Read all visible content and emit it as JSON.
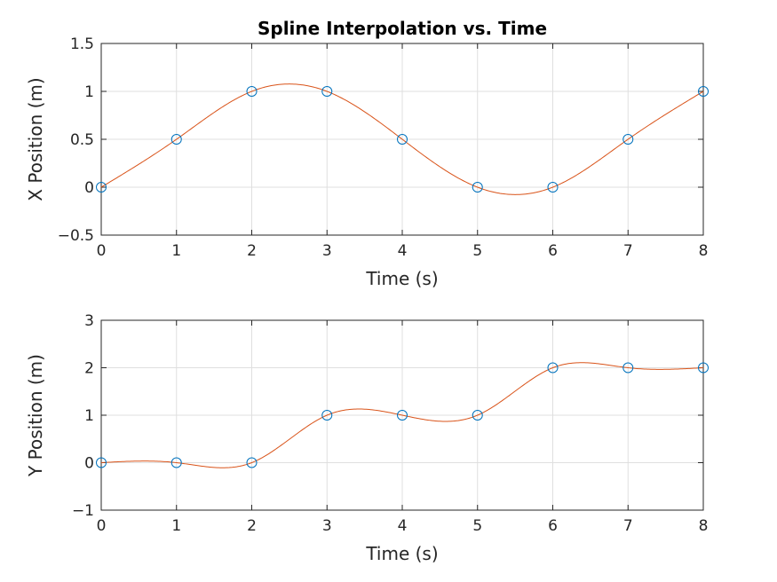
{
  "chart_data": [
    {
      "type": "line",
      "title": "Spline Interpolation vs. Time",
      "xlabel": "Time (s)",
      "ylabel": "X Position (m)",
      "xlim": [
        0,
        8
      ],
      "ylim": [
        -0.5,
        1.5
      ],
      "xticks": [
        0,
        1,
        2,
        3,
        4,
        5,
        6,
        7,
        8
      ],
      "xtick_labels": [
        "0",
        "1",
        "2",
        "3",
        "4",
        "5",
        "6",
        "7",
        "8"
      ],
      "yticks": [
        -0.5,
        0,
        0.5,
        1,
        1.5
      ],
      "ytick_labels": [
        "−0.5",
        "0",
        "0.5",
        "1",
        "1.5"
      ],
      "grid": true,
      "series": [
        {
          "style": "markers",
          "marker": "circle",
          "color": "#0072BD",
          "x": [
            0,
            1,
            2,
            3,
            4,
            5,
            6,
            7,
            8
          ],
          "y": [
            0,
            0.5,
            1,
            1,
            0.5,
            0,
            0,
            0.5,
            1
          ]
        },
        {
          "style": "line",
          "interpolation": "cubic spline",
          "color": "#D95319",
          "x": [
            0,
            1,
            2,
            3,
            4,
            5,
            6,
            7,
            8
          ],
          "y": [
            0,
            0.5,
            1,
            1,
            0.5,
            0,
            0,
            0.5,
            1
          ]
        }
      ]
    },
    {
      "type": "line",
      "title": "",
      "xlabel": "Time (s)",
      "ylabel": "Y Position (m)",
      "xlim": [
        0,
        8
      ],
      "ylim": [
        -1,
        3
      ],
      "xticks": [
        0,
        1,
        2,
        3,
        4,
        5,
        6,
        7,
        8
      ],
      "xtick_labels": [
        "0",
        "1",
        "2",
        "3",
        "4",
        "5",
        "6",
        "7",
        "8"
      ],
      "yticks": [
        -1,
        0,
        1,
        2,
        3
      ],
      "ytick_labels": [
        "−1",
        "0",
        "1",
        "2",
        "3"
      ],
      "grid": true,
      "series": [
        {
          "style": "markers",
          "marker": "circle",
          "color": "#0072BD",
          "x": [
            0,
            1,
            2,
            3,
            4,
            5,
            6,
            7,
            8
          ],
          "y": [
            0,
            0,
            0,
            1,
            1,
            1,
            2,
            2,
            2
          ]
        },
        {
          "style": "line",
          "interpolation": "cubic spline",
          "color": "#D95319",
          "x": [
            0,
            1,
            2,
            3,
            4,
            5,
            6,
            7,
            8
          ],
          "y": [
            0,
            0,
            0,
            1,
            1,
            1,
            2,
            2,
            2
          ]
        }
      ]
    }
  ]
}
